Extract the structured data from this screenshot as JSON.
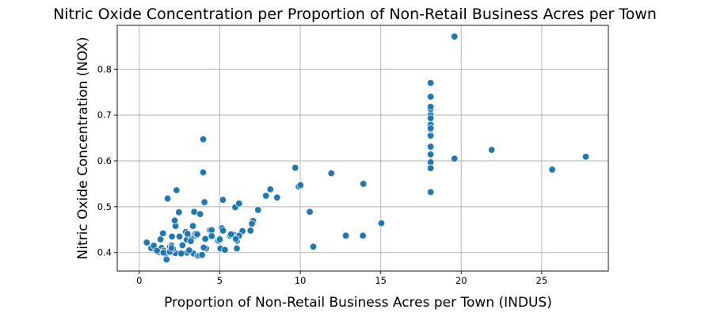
{
  "chart_data": {
    "type": "scatter",
    "title": "Nitric Oxide Concentration per Proportion of Non-Retail Business Acres per Town",
    "xlabel": "Proportion of Non-Retail Business Acres per Town (INDUS)",
    "ylabel": "Nitric Oxide Concentration (NOX)",
    "xlim": [
      -1.37,
      29.14
    ],
    "ylim": [
      0.3598,
      0.8955
    ],
    "xticks": [
      0,
      5,
      10,
      15,
      20,
      25
    ],
    "yticks": [
      0.4,
      0.5,
      0.6,
      0.7,
      0.8
    ],
    "xtick_labels": [
      "0",
      "5",
      "10",
      "15",
      "20",
      "25"
    ],
    "ytick_labels": [
      "0.4",
      "0.5",
      "0.6",
      "0.7",
      "0.8"
    ],
    "grid": true,
    "legend": false,
    "point_color": "#1f77b4",
    "x": [
      0.46,
      0.74,
      1.21,
      1.25,
      1.32,
      1.38,
      1.47,
      1.52,
      1.69,
      1.76,
      1.89,
      1.91,
      2.01,
      2.03,
      2.18,
      2.24,
      2.25,
      2.31,
      2.46,
      2.68,
      2.89,
      2.95,
      2.97,
      3.24,
      3.33,
      3.37,
      3.41,
      3.44,
      3.64,
      3.75,
      3.78,
      3.97,
      3.97,
      4.05,
      4.15,
      4.39,
      4.49,
      4.86,
      4.93,
      5.04,
      5.13,
      5.19,
      5.32,
      5.64,
      5.86,
      5.96,
      6.06,
      6.07,
      6.09,
      6.2,
      6.41,
      6.91,
      7.07,
      7.38,
      7.87,
      8.14,
      8.56,
      9.69,
      9.9,
      10.01,
      10.59,
      10.81,
      11.93,
      12.83,
      13.89,
      13.92,
      15.04,
      18.1,
      18.1,
      18.1,
      18.1,
      18.1,
      18.1,
      18.1,
      18.1,
      18.1,
      18.1,
      18.1,
      18.1,
      18.1,
      18.1,
      18.1,
      18.1,
      18.1,
      19.58,
      19.58,
      21.89,
      25.65,
      27.74,
      2.1,
      1.6,
      3.0,
      4.0,
      0.9,
      2.5,
      3.5,
      5.0,
      6.2,
      7.0,
      1.9,
      4.5,
      1.1,
      5.2,
      3.1,
      2.0,
      3.6,
      2.2,
      4.1,
      3.9,
      1.5,
      6.0,
      5.7,
      3.2,
      2.6
    ],
    "y": [
      0.422,
      0.41,
      0.401,
      0.405,
      0.429,
      0.41,
      0.442,
      0.404,
      0.385,
      0.518,
      0.411,
      0.413,
      0.415,
      0.435,
      0.4,
      0.399,
      0.458,
      0.536,
      0.488,
      0.416,
      0.445,
      0.428,
      0.4,
      0.433,
      0.458,
      0.398,
      0.489,
      0.437,
      0.393,
      0.394,
      0.484,
      0.647,
      0.575,
      0.51,
      0.409,
      0.449,
      0.449,
      0.426,
      0.426,
      0.409,
      0.453,
      0.515,
      0.406,
      0.437,
      0.439,
      0.499,
      0.409,
      0.426,
      0.433,
      0.507,
      0.447,
      0.448,
      0.469,
      0.493,
      0.524,
      0.538,
      0.52,
      0.585,
      0.544,
      0.547,
      0.489,
      0.413,
      0.573,
      0.437,
      0.437,
      0.55,
      0.464,
      0.532,
      0.583,
      0.597,
      0.614,
      0.631,
      0.655,
      0.668,
      0.679,
      0.693,
      0.7,
      0.713,
      0.718,
      0.74,
      0.77,
      0.584,
      0.671,
      0.693,
      0.605,
      0.871,
      0.624,
      0.581,
      0.609,
      0.408,
      0.398,
      0.441,
      0.411,
      0.415,
      0.435,
      0.441,
      0.429,
      0.437,
      0.463,
      0.402,
      0.436,
      0.404,
      0.448,
      0.405,
      0.41,
      0.44,
      0.47,
      0.43,
      0.395,
      0.4,
      0.43,
      0.44,
      0.425,
      0.398
    ]
  }
}
